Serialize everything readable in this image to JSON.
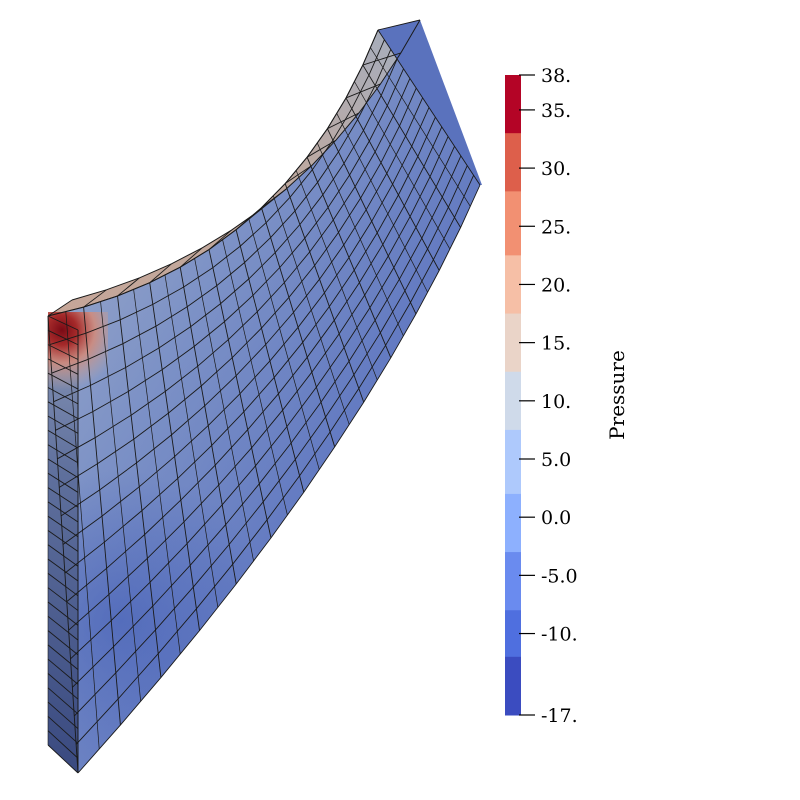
{
  "colorbar": {
    "title": "Pressure",
    "range": [
      -17,
      38
    ],
    "ticks": [
      {
        "value": 38,
        "label": "38."
      },
      {
        "value": 35,
        "label": "35."
      },
      {
        "value": 30,
        "label": "30."
      },
      {
        "value": 25,
        "label": "25."
      },
      {
        "value": 20,
        "label": "20."
      },
      {
        "value": 15,
        "label": "15."
      },
      {
        "value": 10,
        "label": "10."
      },
      {
        "value": 5,
        "label": "5.0"
      },
      {
        "value": 0,
        "label": "0.0"
      },
      {
        "value": -5,
        "label": "-5.0"
      },
      {
        "value": -10,
        "label": "-10."
      },
      {
        "value": -17,
        "label": "-17."
      }
    ],
    "bands": [
      {
        "from": 33,
        "to": 38,
        "color": "#b40426"
      },
      {
        "from": 28,
        "to": 33,
        "color": "#dd5f4b"
      },
      {
        "from": 22.5,
        "to": 28,
        "color": "#f29072"
      },
      {
        "from": 17.5,
        "to": 22.5,
        "color": "#f6bfa6"
      },
      {
        "from": 12.5,
        "to": 17.5,
        "color": "#ead4c8"
      },
      {
        "from": 7.5,
        "to": 12.5,
        "color": "#cfdaea"
      },
      {
        "from": 2,
        "to": 7.5,
        "color": "#aec9fc"
      },
      {
        "from": -3,
        "to": 2,
        "color": "#8db0fe"
      },
      {
        "from": -8,
        "to": -3,
        "color": "#6a8bef"
      },
      {
        "from": -12,
        "to": -8,
        "color": "#4f6fdf"
      },
      {
        "from": -17,
        "to": -12,
        "color": "#3b4cc0"
      }
    ]
  },
  "mesh": {
    "colors": {
      "top_face": "#c8a89a",
      "top_face_far": "#a6b0bf",
      "hot_corner": "#7a0a15",
      "hot_ring": "#c2584a",
      "side_face_high": "#9aa8c8",
      "side_face_mid": "#6f85c0",
      "side_face_low": "#3f55a8",
      "front_face": "#4a5f9c",
      "edge": "#1a1a1a"
    }
  }
}
